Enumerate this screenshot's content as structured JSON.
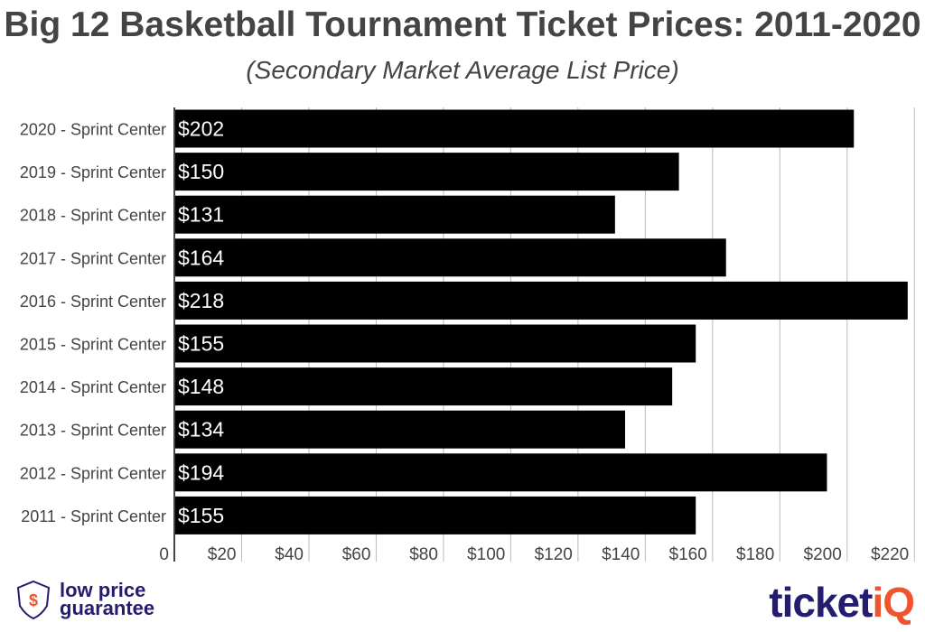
{
  "chart_data": {
    "type": "bar",
    "orientation": "horizontal",
    "title": "Big 12 Basketball Tournament Ticket Prices: 2011-2020",
    "subtitle": "(Secondary Market Average List Price)",
    "categories": [
      "2020 - Sprint Center",
      "2019 - Sprint Center",
      "2018 - Sprint Center",
      "2017 - Sprint Center",
      "2016 - Sprint Center",
      "2015 - Sprint Center",
      "2014 - Sprint Center",
      "2013 - Sprint Center",
      "2012 - Sprint Center",
      "2011 - Sprint Center"
    ],
    "values": [
      202,
      150,
      131,
      164,
      218,
      155,
      148,
      134,
      194,
      155
    ],
    "data_labels": [
      "$202",
      "$150",
      "$131",
      "$164",
      "$218",
      "$155",
      "$148",
      "$134",
      "$194",
      "$155"
    ],
    "x_ticks": [
      0,
      20,
      40,
      60,
      80,
      100,
      120,
      140,
      160,
      180,
      200,
      220
    ],
    "x_tick_labels": [
      "0",
      "$20",
      "$40",
      "$60",
      "$80",
      "$100",
      "$120",
      "$140",
      "$160",
      "$180",
      "$200",
      "$220"
    ],
    "xlim": [
      0,
      221
    ],
    "grid": true,
    "bar_color": "#000000"
  },
  "logos": {
    "left_line1": "low price",
    "left_line2": "guarantee",
    "right_main": "ticket",
    "right_accent": "iQ"
  }
}
